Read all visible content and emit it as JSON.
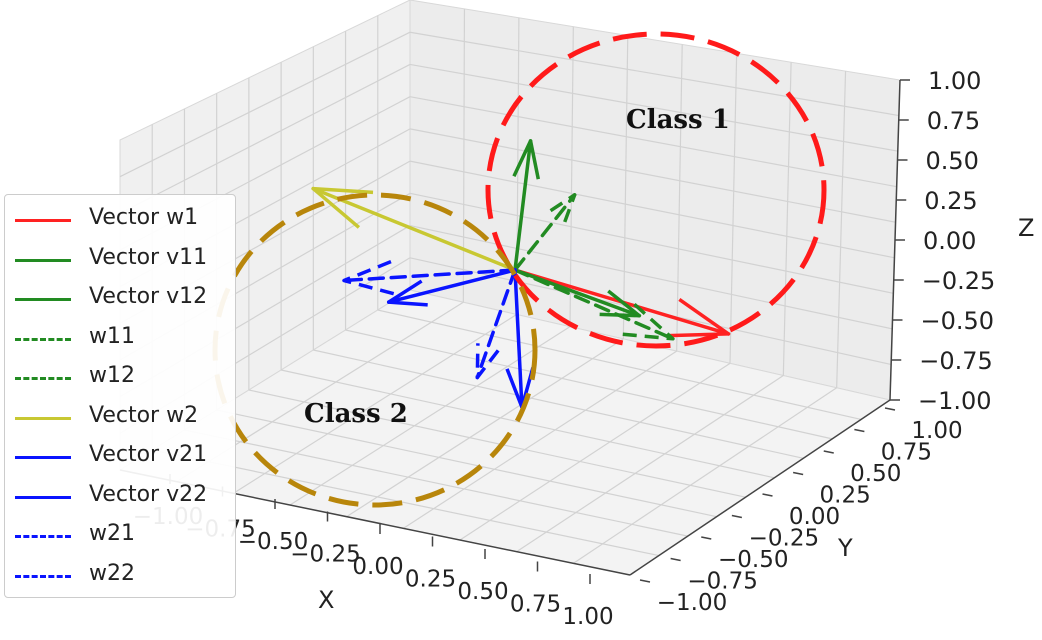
{
  "chart_data": {
    "type": "3d-vector",
    "xlabel": "X",
    "ylabel": "Y",
    "zlabel": "Z",
    "xlim": [
      -1.0,
      1.0
    ],
    "ylim": [
      -1.0,
      1.0
    ],
    "zlim": [
      -1.0,
      1.0
    ],
    "x_ticks": [
      "−1.00",
      "−0.75",
      "−0.50",
      "−0.25",
      "0.00",
      "0.25",
      "0.50",
      "0.75",
      "1.00"
    ],
    "y_ticks": [
      "−1.00",
      "−0.75",
      "−0.50",
      "−0.25",
      "0.00",
      "0.25",
      "0.50",
      "0.75",
      "1.00"
    ],
    "z_ticks": [
      "−1.00",
      "−0.75",
      "−0.50",
      "−0.25",
      "0.00",
      "0.25",
      "0.50",
      "0.75",
      "1.00"
    ],
    "grid": true,
    "legend_position": "center-left",
    "series": [
      {
        "name": "Vector w1",
        "style": "solid",
        "color": "#ff2222",
        "from": [
          0,
          0,
          0
        ],
        "to": [
          0.95,
          -0.5,
          -0.25
        ]
      },
      {
        "name": "Vector v11",
        "style": "solid",
        "color": "#228b22",
        "from": [
          0,
          0,
          0
        ],
        "to": [
          0.05,
          0.1,
          0.9
        ]
      },
      {
        "name": "Vector v12",
        "style": "solid",
        "color": "#228b22",
        "from": [
          0,
          0,
          0
        ],
        "to": [
          0.55,
          0.45,
          0.3
        ]
      },
      {
        "name": "w11",
        "style": "dashed",
        "color": "#228b22",
        "from": [
          0,
          0,
          0
        ],
        "to": [
          0.25,
          0.3,
          0.8
        ]
      },
      {
        "name": "w12",
        "style": "dashed",
        "color": "#228b22",
        "from": [
          0,
          0,
          0
        ],
        "to": [
          0.7,
          0.55,
          0.3
        ]
      },
      {
        "name": "Vector w2",
        "style": "solid",
        "color": "#c8c832",
        "from": [
          0,
          0,
          0
        ],
        "to": [
          -0.9,
          0.3,
          0.25
        ]
      },
      {
        "name": "Vector v21",
        "style": "solid",
        "color": "#0a14ff",
        "from": [
          0,
          0,
          0
        ],
        "to": [
          -0.55,
          -0.1,
          -0.55
        ]
      },
      {
        "name": "Vector v22",
        "style": "solid",
        "color": "#0a14ff",
        "from": [
          0,
          0,
          0
        ],
        "to": [
          0.05,
          -0.1,
          -0.9
        ]
      },
      {
        "name": "w21",
        "style": "dashed",
        "color": "#0a14ff",
        "from": [
          0,
          0,
          0
        ],
        "to": [
          -0.75,
          0.0,
          -0.45
        ]
      },
      {
        "name": "w22",
        "style": "dashed",
        "color": "#0a14ff",
        "from": [
          0,
          0,
          0
        ],
        "to": [
          -0.15,
          -0.15,
          -0.85
        ]
      }
    ],
    "annotations": [
      {
        "text": "Class 1",
        "color": "#ff1a1a",
        "style": "dashed-circle"
      },
      {
        "text": "Class 2",
        "color": "#b8860b",
        "style": "dashed-circle"
      }
    ]
  }
}
